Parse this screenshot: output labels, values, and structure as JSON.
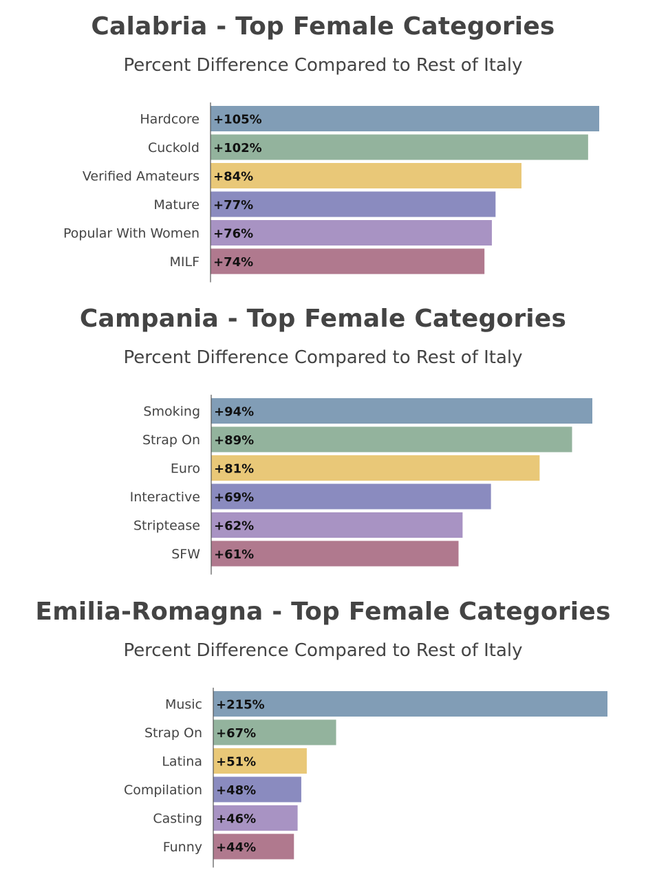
{
  "colors": [
    "#819db6",
    "#93b39d",
    "#e9c878",
    "#8a8bbf",
    "#a893c3",
    "#b0798e"
  ],
  "chart_data": [
    {
      "type": "bar",
      "orientation": "horizontal",
      "title": "Calabria - Top Female Categories",
      "subtitle": "Percent Difference Compared to Rest of Italy",
      "categories": [
        "Hardcore",
        "Cuckold",
        "Verified Amateurs",
        "Mature",
        "Popular With Women",
        "MILF"
      ],
      "values": [
        105,
        102,
        84,
        77,
        76,
        74
      ],
      "labels": [
        "+105%",
        "+102%",
        "+84%",
        "+77%",
        "+76%",
        "+74%"
      ],
      "xlim": [
        0,
        105
      ]
    },
    {
      "type": "bar",
      "orientation": "horizontal",
      "title": "Campania - Top Female Categories",
      "subtitle": "Percent Difference Compared to Rest of Italy",
      "categories": [
        "Smoking",
        "Strap On",
        "Euro",
        "Interactive",
        "Striptease",
        "SFW"
      ],
      "values": [
        94,
        89,
        81,
        69,
        62,
        61
      ],
      "labels": [
        "+94%",
        "+89%",
        "+81%",
        "+69%",
        "+62%",
        "+61%"
      ],
      "xlim": [
        0,
        94
      ]
    },
    {
      "type": "bar",
      "orientation": "horizontal",
      "title": "Emilia-Romagna - Top Female Categories",
      "subtitle": "Percent Difference Compared to Rest of Italy",
      "categories": [
        "Music",
        "Strap On",
        "Latina",
        "Compilation",
        "Casting",
        "Funny"
      ],
      "values": [
        215,
        67,
        51,
        48,
        46,
        44
      ],
      "labels": [
        "+215%",
        "+67%",
        "+51%",
        "+48%",
        "+46%",
        "+44%"
      ],
      "xlim": [
        0,
        215
      ]
    }
  ]
}
